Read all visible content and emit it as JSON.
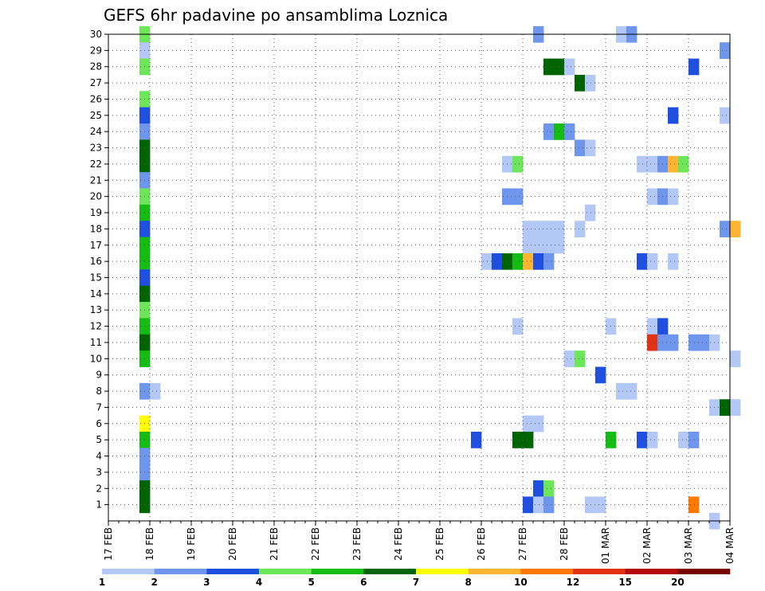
{
  "chart_data": {
    "type": "heatmap",
    "title": "GEFS 6hr padavine po ansamblima Loznica",
    "xlabel": "",
    "ylabel": "",
    "y_range": [
      0,
      30
    ],
    "y_ticks": [
      1,
      2,
      3,
      4,
      5,
      6,
      7,
      8,
      9,
      10,
      11,
      12,
      13,
      14,
      15,
      16,
      17,
      18,
      19,
      20,
      21,
      22,
      23,
      24,
      25,
      26,
      27,
      28,
      29,
      30
    ],
    "x_tick_labels": [
      "17 FEB",
      "18 FEB",
      "19 FEB",
      "20 FEB",
      "21 FEB",
      "22 FEB",
      "23 FEB",
      "24 FEB",
      "25 FEB",
      "26 FEB",
      "27 FEB",
      "28 FEB",
      "01 MAR",
      "02 MAR",
      "03 MAR",
      "04 MAR"
    ],
    "time_step_hours": 6,
    "color_bins": {
      "levels": [
        "1",
        "2",
        "3",
        "4",
        "5",
        "6",
        "7",
        "8",
        "10",
        "12",
        "15",
        "20"
      ],
      "colors": [
        "#b4c8f5",
        "#6e96ec",
        "#1e4fe0",
        "#6ee65a",
        "#14bc14",
        "#006400",
        "#ffff00",
        "#ffb432",
        "#ff7800",
        "#e13214",
        "#b40a00",
        "#780000"
      ]
    },
    "cells": [
      {
        "m": 30,
        "d": "17 FEB",
        "h": 18,
        "bin": 4
      },
      {
        "m": 29,
        "d": "17 FEB",
        "h": 18,
        "bin": 1
      },
      {
        "m": 28,
        "d": "17 FEB",
        "h": 18,
        "bin": 4
      },
      {
        "m": 26,
        "d": "17 FEB",
        "h": 18,
        "bin": 4
      },
      {
        "m": 25,
        "d": "17 FEB",
        "h": 18,
        "bin": 3
      },
      {
        "m": 24,
        "d": "17 FEB",
        "h": 18,
        "bin": 2
      },
      {
        "m": 23,
        "d": "17 FEB",
        "h": 18,
        "bin": 6
      },
      {
        "m": 22,
        "d": "17 FEB",
        "h": 18,
        "bin": 6
      },
      {
        "m": 21,
        "d": "17 FEB",
        "h": 18,
        "bin": 2
      },
      {
        "m": 20,
        "d": "17 FEB",
        "h": 18,
        "bin": 4
      },
      {
        "m": 19,
        "d": "17 FEB",
        "h": 18,
        "bin": 5
      },
      {
        "m": 18,
        "d": "17 FEB",
        "h": 18,
        "bin": 3
      },
      {
        "m": 17,
        "d": "17 FEB",
        "h": 18,
        "bin": 5
      },
      {
        "m": 16,
        "d": "17 FEB",
        "h": 18,
        "bin": 5
      },
      {
        "m": 15,
        "d": "17 FEB",
        "h": 18,
        "bin": 3
      },
      {
        "m": 14,
        "d": "17 FEB",
        "h": 18,
        "bin": 6
      },
      {
        "m": 13,
        "d": "17 FEB",
        "h": 18,
        "bin": 4
      },
      {
        "m": 12,
        "d": "17 FEB",
        "h": 18,
        "bin": 5
      },
      {
        "m": 11,
        "d": "17 FEB",
        "h": 18,
        "bin": 6
      },
      {
        "m": 10,
        "d": "17 FEB",
        "h": 18,
        "bin": 5
      },
      {
        "m": 8,
        "d": "17 FEB",
        "h": 18,
        "bin": 2
      },
      {
        "m": 8,
        "d": "18 FEB",
        "h": 0,
        "bin": 1
      },
      {
        "m": 6,
        "d": "17 FEB",
        "h": 18,
        "bin": 7
      },
      {
        "m": 5,
        "d": "17 FEB",
        "h": 18,
        "bin": 5
      },
      {
        "m": 4,
        "d": "17 FEB",
        "h": 18,
        "bin": 2
      },
      {
        "m": 3,
        "d": "17 FEB",
        "h": 18,
        "bin": 2
      },
      {
        "m": 2,
        "d": "17 FEB",
        "h": 18,
        "bin": 6
      },
      {
        "m": 1,
        "d": "17 FEB",
        "h": 18,
        "bin": 6
      },
      {
        "m": 30,
        "d": "27 FEB",
        "h": 6,
        "bin": 2
      },
      {
        "m": 30,
        "d": "01 MAR",
        "h": 6,
        "bin": 1
      },
      {
        "m": 30,
        "d": "01 MAR",
        "h": 12,
        "bin": 2
      },
      {
        "m": 29,
        "d": "03 MAR",
        "h": 18,
        "bin": 2
      },
      {
        "m": 28,
        "d": "27 FEB",
        "h": 12,
        "bin": 6
      },
      {
        "m": 28,
        "d": "27 FEB",
        "h": 18,
        "bin": 6
      },
      {
        "m": 28,
        "d": "28 FEB",
        "h": 0,
        "bin": 1
      },
      {
        "m": 28,
        "d": "03 MAR",
        "h": 0,
        "bin": 3
      },
      {
        "m": 27,
        "d": "28 FEB",
        "h": 6,
        "bin": 6
      },
      {
        "m": 27,
        "d": "28 FEB",
        "h": 12,
        "bin": 1
      },
      {
        "m": 25,
        "d": "02 MAR",
        "h": 12,
        "bin": 3
      },
      {
        "m": 25,
        "d": "03 MAR",
        "h": 18,
        "bin": 1
      },
      {
        "m": 24,
        "d": "27 FEB",
        "h": 12,
        "bin": 2
      },
      {
        "m": 24,
        "d": "27 FEB",
        "h": 18,
        "bin": 5
      },
      {
        "m": 24,
        "d": "28 FEB",
        "h": 0,
        "bin": 2
      },
      {
        "m": 23,
        "d": "28 FEB",
        "h": 6,
        "bin": 2
      },
      {
        "m": 23,
        "d": "28 FEB",
        "h": 12,
        "bin": 1
      },
      {
        "m": 22,
        "d": "26 FEB",
        "h": 12,
        "bin": 1
      },
      {
        "m": 22,
        "d": "26 FEB",
        "h": 18,
        "bin": 4
      },
      {
        "m": 22,
        "d": "01 MAR",
        "h": 18,
        "bin": 1
      },
      {
        "m": 22,
        "d": "02 MAR",
        "h": 0,
        "bin": 1
      },
      {
        "m": 22,
        "d": "02 MAR",
        "h": 6,
        "bin": 2
      },
      {
        "m": 22,
        "d": "02 MAR",
        "h": 12,
        "bin": 8
      },
      {
        "m": 22,
        "d": "02 MAR",
        "h": 18,
        "bin": 4
      },
      {
        "m": 20,
        "d": "26 FEB",
        "h": 12,
        "bin": 2
      },
      {
        "m": 20,
        "d": "26 FEB",
        "h": 18,
        "bin": 2
      },
      {
        "m": 20,
        "d": "02 MAR",
        "h": 0,
        "bin": 1
      },
      {
        "m": 20,
        "d": "02 MAR",
        "h": 6,
        "bin": 2
      },
      {
        "m": 20,
        "d": "02 MAR",
        "h": 12,
        "bin": 1
      },
      {
        "m": 19,
        "d": "28 FEB",
        "h": 12,
        "bin": 1
      },
      {
        "m": 18,
        "d": "27 FEB",
        "h": 0,
        "bin": 1
      },
      {
        "m": 18,
        "d": "27 FEB",
        "h": 6,
        "bin": 1
      },
      {
        "m": 18,
        "d": "27 FEB",
        "h": 12,
        "bin": 1
      },
      {
        "m": 18,
        "d": "27 FEB",
        "h": 18,
        "bin": 1
      },
      {
        "m": 18,
        "d": "28 FEB",
        "h": 6,
        "bin": 1
      },
      {
        "m": 18,
        "d": "03 MAR",
        "h": 18,
        "bin": 2
      },
      {
        "m": 18,
        "d": "04 MAR",
        "h": 0,
        "bin": 8
      },
      {
        "m": 17,
        "d": "27 FEB",
        "h": 0,
        "bin": 1
      },
      {
        "m": 17,
        "d": "27 FEB",
        "h": 6,
        "bin": 1
      },
      {
        "m": 17,
        "d": "27 FEB",
        "h": 12,
        "bin": 1
      },
      {
        "m": 17,
        "d": "27 FEB",
        "h": 18,
        "bin": 1
      },
      {
        "m": 16,
        "d": "26 FEB",
        "h": 0,
        "bin": 1
      },
      {
        "m": 16,
        "d": "26 FEB",
        "h": 6,
        "bin": 3
      },
      {
        "m": 16,
        "d": "26 FEB",
        "h": 12,
        "bin": 6
      },
      {
        "m": 16,
        "d": "26 FEB",
        "h": 18,
        "bin": 5
      },
      {
        "m": 16,
        "d": "27 FEB",
        "h": 0,
        "bin": 8
      },
      {
        "m": 16,
        "d": "27 FEB",
        "h": 6,
        "bin": 3
      },
      {
        "m": 16,
        "d": "27 FEB",
        "h": 12,
        "bin": 2
      },
      {
        "m": 16,
        "d": "01 MAR",
        "h": 18,
        "bin": 3
      },
      {
        "m": 16,
        "d": "02 MAR",
        "h": 0,
        "bin": 1
      },
      {
        "m": 16,
        "d": "02 MAR",
        "h": 12,
        "bin": 1
      },
      {
        "m": 12,
        "d": "26 FEB",
        "h": 18,
        "bin": 1
      },
      {
        "m": 12,
        "d": "01 MAR",
        "h": 0,
        "bin": 1
      },
      {
        "m": 12,
        "d": "02 MAR",
        "h": 0,
        "bin": 1
      },
      {
        "m": 12,
        "d": "02 MAR",
        "h": 6,
        "bin": 3
      },
      {
        "m": 11,
        "d": "02 MAR",
        "h": 0,
        "bin": 10
      },
      {
        "m": 11,
        "d": "02 MAR",
        "h": 6,
        "bin": 2
      },
      {
        "m": 11,
        "d": "02 MAR",
        "h": 12,
        "bin": 2
      },
      {
        "m": 11,
        "d": "03 MAR",
        "h": 0,
        "bin": 2
      },
      {
        "m": 11,
        "d": "03 MAR",
        "h": 6,
        "bin": 2
      },
      {
        "m": 11,
        "d": "03 MAR",
        "h": 12,
        "bin": 1
      },
      {
        "m": 10,
        "d": "28 FEB",
        "h": 0,
        "bin": 1
      },
      {
        "m": 10,
        "d": "28 FEB",
        "h": 6,
        "bin": 4
      },
      {
        "m": 10,
        "d": "04 MAR",
        "h": 0,
        "bin": 1
      },
      {
        "m": 9,
        "d": "28 FEB",
        "h": 18,
        "bin": 3
      },
      {
        "m": 8,
        "d": "01 MAR",
        "h": 6,
        "bin": 1
      },
      {
        "m": 8,
        "d": "01 MAR",
        "h": 12,
        "bin": 1
      },
      {
        "m": 7,
        "d": "03 MAR",
        "h": 12,
        "bin": 1
      },
      {
        "m": 7,
        "d": "03 MAR",
        "h": 18,
        "bin": 6
      },
      {
        "m": 7,
        "d": "04 MAR",
        "h": 0,
        "bin": 1
      },
      {
        "m": 6,
        "d": "27 FEB",
        "h": 0,
        "bin": 1
      },
      {
        "m": 6,
        "d": "27 FEB",
        "h": 6,
        "bin": 1
      },
      {
        "m": 5,
        "d": "25 FEB",
        "h": 18,
        "bin": 3
      },
      {
        "m": 5,
        "d": "26 FEB",
        "h": 18,
        "bin": 6
      },
      {
        "m": 5,
        "d": "27 FEB",
        "h": 0,
        "bin": 6
      },
      {
        "m": 5,
        "d": "01 MAR",
        "h": 0,
        "bin": 5
      },
      {
        "m": 5,
        "d": "01 MAR",
        "h": 18,
        "bin": 3
      },
      {
        "m": 5,
        "d": "02 MAR",
        "h": 0,
        "bin": 1
      },
      {
        "m": 5,
        "d": "02 MAR",
        "h": 18,
        "bin": 1
      },
      {
        "m": 5,
        "d": "03 MAR",
        "h": 0,
        "bin": 2
      },
      {
        "m": 2,
        "d": "27 FEB",
        "h": 6,
        "bin": 3
      },
      {
        "m": 2,
        "d": "27 FEB",
        "h": 12,
        "bin": 4
      },
      {
        "m": 1,
        "d": "27 FEB",
        "h": 0,
        "bin": 3
      },
      {
        "m": 1,
        "d": "27 FEB",
        "h": 6,
        "bin": 1
      },
      {
        "m": 1,
        "d": "27 FEB",
        "h": 12,
        "bin": 2
      },
      {
        "m": 1,
        "d": "28 FEB",
        "h": 12,
        "bin": 1
      },
      {
        "m": 1,
        "d": "28 FEB",
        "h": 18,
        "bin": 1
      },
      {
        "m": 1,
        "d": "03 MAR",
        "h": 0,
        "bin": 9
      },
      {
        "m": 0,
        "d": "03 MAR",
        "h": 12,
        "bin": 1
      }
    ]
  }
}
